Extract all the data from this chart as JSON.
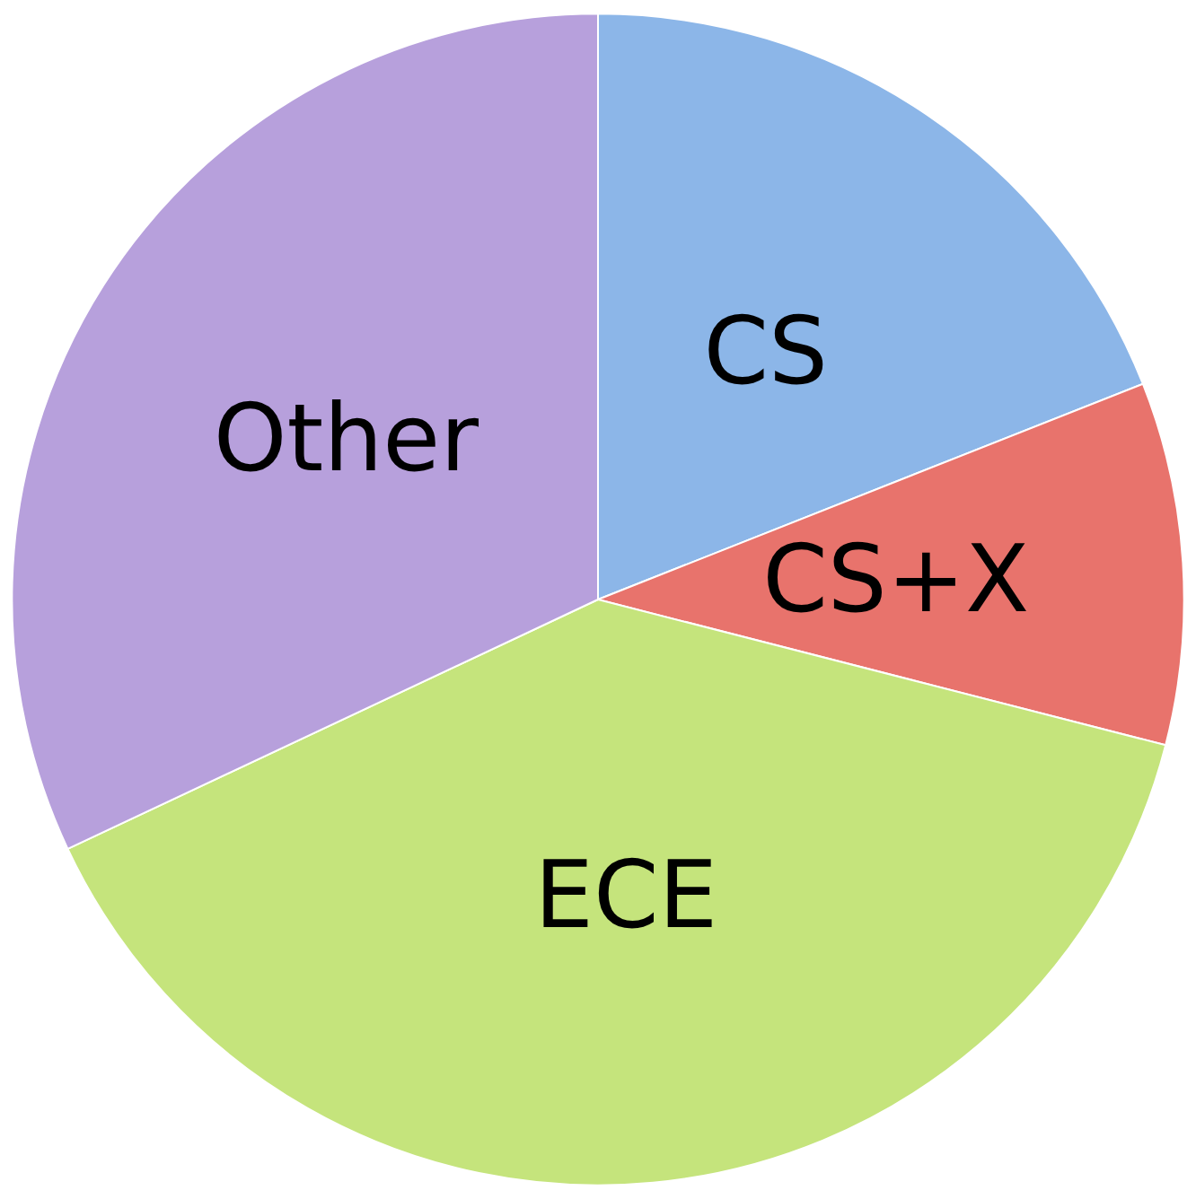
{
  "chart_data": {
    "type": "pie",
    "categories": [
      "CS",
      "CS+X",
      "ECE",
      "Other"
    ],
    "values": [
      19,
      10,
      39,
      32
    ],
    "colors": [
      "#8cb6e8",
      "#e8736c",
      "#c5e47c",
      "#b7a0dc"
    ],
    "legend": false
  }
}
